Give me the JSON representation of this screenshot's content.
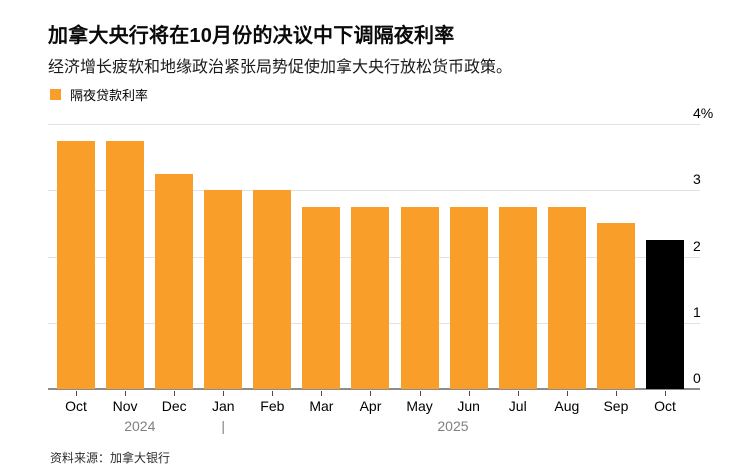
{
  "header": {
    "title": "加拿大央行将在10月份的决议中下调隔夜利率",
    "subtitle": "经济增长疲软和地缘政治紧张局势促使加拿大央行放松货币政策。"
  },
  "legend": {
    "label": "隔夜贷款利率",
    "swatch_color": "#F99E28"
  },
  "chart_data": {
    "type": "bar",
    "title": "加拿大央行将在10月份的决议中下调隔夜利率",
    "subtitle": "经济增长疲软和地缘政治紧张局势促使加拿大央行放松货币政策。",
    "series_name": "隔夜贷款利率",
    "categories": [
      "Oct",
      "Nov",
      "Dec",
      "Jan",
      "Feb",
      "Mar",
      "Apr",
      "May",
      "Jun",
      "Jul",
      "Aug",
      "Sep",
      "Oct"
    ],
    "values": [
      3.75,
      3.75,
      3.25,
      3.0,
      3.0,
      2.75,
      2.75,
      2.75,
      2.75,
      2.75,
      2.75,
      2.5,
      2.25
    ],
    "forecast_index": 12,
    "colors": {
      "actual": "#F99E28",
      "forecast": "#000000"
    },
    "ylim": [
      0,
      4
    ],
    "y_tick_values": [
      4,
      3,
      2,
      1,
      0
    ],
    "y_ticks": [
      "4%",
      "3",
      "2",
      "1",
      "0"
    ],
    "y_axis_side": "right",
    "grid": true,
    "legend_position": "top-left",
    "years": [
      {
        "label": "2024",
        "center_index": 1.3
      },
      {
        "label": "|",
        "center_index": 3.0
      },
      {
        "label": "2025",
        "center_index": 7.68
      }
    ]
  },
  "footer": {
    "source": "资料来源：加拿大银行"
  }
}
